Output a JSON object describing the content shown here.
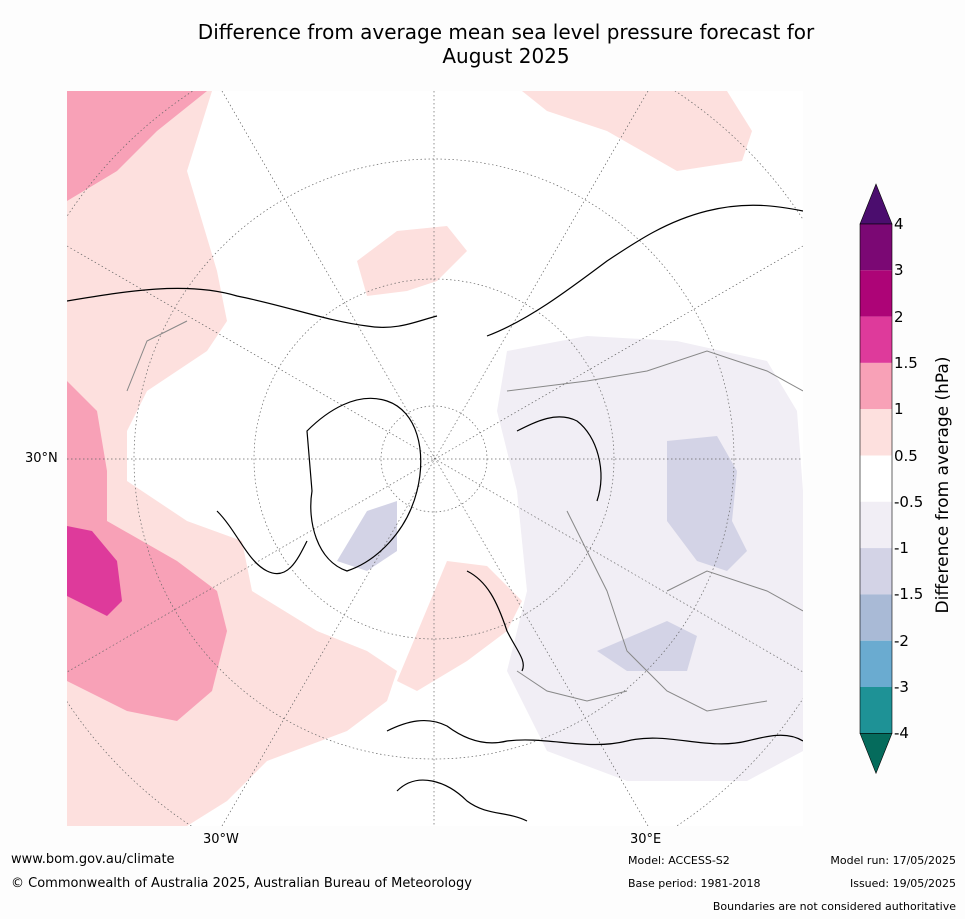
{
  "title_line1": "Difference from average mean sea level pressure forecast for",
  "title_line2": "August 2025",
  "map_labels": {
    "lat_30n": "30°N",
    "lon_30w": "30°W",
    "lon_30e": "30°E"
  },
  "colorbar": {
    "label": "Difference from average (hPa)",
    "ticks": [
      "4",
      "3",
      "2",
      "1.5",
      "1",
      "0.5",
      "-0.5",
      "-1",
      "-1.5",
      "-2",
      "-3",
      "-4"
    ],
    "colors": [
      "#4b0d6e",
      "#7b0874",
      "#ad0477",
      "#de3a9b",
      "#f8a1b7",
      "#fde0de",
      "#ffffff",
      "#f1eef5",
      "#d3d3e6",
      "#a9bad6",
      "#6aabd0",
      "#1e9296",
      "#056b5c"
    ]
  },
  "footer": {
    "url": "www.bom.gov.au/climate",
    "copyright": "© Commonwealth of Australia 2025, Australian Bureau of Meteorology",
    "model": "Model: ACCESS-S2",
    "base_period": "Base period: 1981-2018",
    "model_run": "Model run: 17/05/2025",
    "issued": "Issued: 19/05/2025",
    "boundaries_note": "Boundaries are not considered authoritative"
  }
}
